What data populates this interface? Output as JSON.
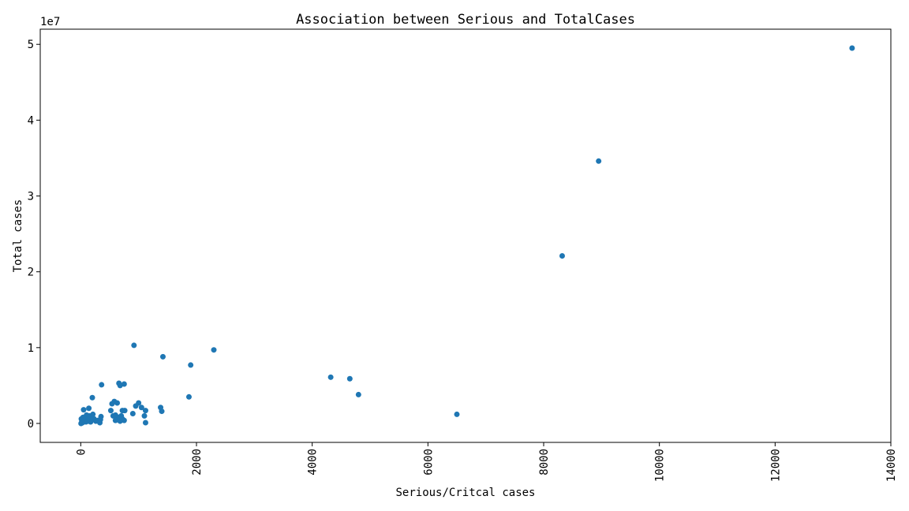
{
  "chart_data": {
    "type": "scatter",
    "title": "Association between Serious and TotalCases",
    "xlabel": "Serious/Critcal cases",
    "ylabel": "Total cases",
    "y_offset_label": "1e7",
    "xlim": [
      -700,
      14000
    ],
    "ylim": [
      -2500000,
      52000000
    ],
    "xticks": [
      0,
      2000,
      4000,
      6000,
      8000,
      10000,
      12000,
      14000
    ],
    "xtick_labels": [
      "0",
      "2000",
      "4000",
      "6000",
      "8000",
      "10000",
      "12000",
      "14000"
    ],
    "yticks": [
      0,
      10000000,
      20000000,
      30000000,
      40000000,
      50000000
    ],
    "ytick_labels": [
      "0",
      "1",
      "2",
      "3",
      "4",
      "5"
    ],
    "grid": false,
    "color": "#1f77b4",
    "x": [
      13330,
      8950,
      8320,
      4800,
      4650,
      4320,
      6500,
      2300,
      1900,
      1870,
      1420,
      1400,
      1380,
      1120,
      1100,
      1120,
      1050,
      1000,
      950,
      920,
      900,
      760,
      750,
      720,
      700,
      680,
      660,
      630,
      620,
      600,
      580,
      560,
      540,
      520,
      360,
      350,
      340,
      330,
      300,
      260,
      230,
      210,
      200,
      190,
      180,
      170,
      160,
      150,
      140,
      130,
      120,
      110,
      100,
      90,
      80,
      60,
      50,
      40,
      30,
      20,
      10,
      5,
      750,
      720,
      680,
      650,
      600
    ],
    "y": [
      49500000,
      34600000,
      22100000,
      3800000,
      5900000,
      6100000,
      1200000,
      9700000,
      7700000,
      3500000,
      8800000,
      1600000,
      2100000,
      100000,
      1000000,
      1700000,
      2100000,
      2700000,
      2300000,
      10300000,
      1300000,
      1700000,
      5200000,
      1700000,
      1000000,
      5000000,
      5300000,
      2700000,
      800000,
      1100000,
      2900000,
      1000000,
      2600000,
      1700000,
      5100000,
      900000,
      500000,
      100000,
      400000,
      300000,
      600000,
      1200000,
      3400000,
      900000,
      500000,
      200000,
      600000,
      1000000,
      2000000,
      300000,
      700000,
      400000,
      1100000,
      200000,
      500000,
      300000,
      1800000,
      800000,
      100000,
      300000,
      600000,
      0,
      400000,
      600000,
      300000,
      800000,
      400000
    ]
  }
}
